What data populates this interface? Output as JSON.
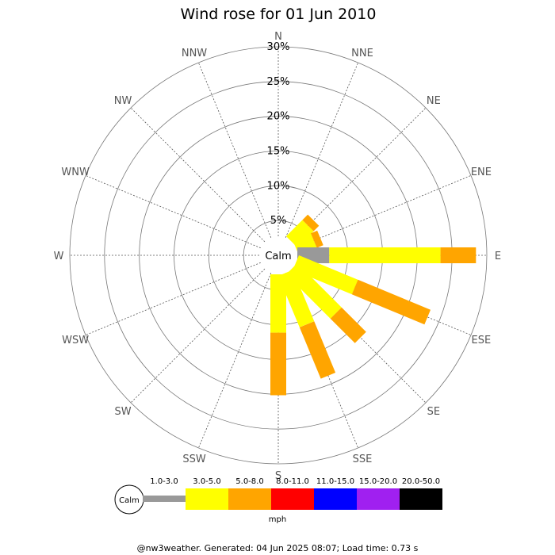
{
  "chart_data": {
    "type": "windrose",
    "title": "Wind rose for 01 Jun 2010",
    "directions": [
      "N",
      "NNE",
      "NE",
      "ENE",
      "E",
      "ESE",
      "SE",
      "SSE",
      "S",
      "SSW",
      "SW",
      "WSW",
      "W",
      "WNW",
      "NW",
      "NNW"
    ],
    "radial_ticks": [
      "5%",
      "10%",
      "15%",
      "20%",
      "25%",
      "30%"
    ],
    "radial_values": [
      5,
      10,
      15,
      20,
      25,
      30
    ],
    "rmax": 30,
    "calm_label": "Calm",
    "unit_label": "mph",
    "speed_bins": [
      {
        "label": "1.0-3.0",
        "color": "#999999"
      },
      {
        "label": "3.0-5.0",
        "color": "#ffff00"
      },
      {
        "label": "5.0-8.0",
        "color": "#ffa500"
      },
      {
        "label": "8.0-11.0",
        "color": "#ff0000"
      },
      {
        "label": "11.0-15.0",
        "color": "#0000ff"
      },
      {
        "label": "15.0-20.0",
        "color": "#a020f0"
      },
      {
        "label": "20.0-50.0",
        "color": "#000000"
      }
    ],
    "series": [
      {
        "direction": "NE",
        "segments": [
          0,
          3.3,
          1.1
        ]
      },
      {
        "direction": "ENE",
        "segments": [
          0,
          2.8,
          1.0
        ]
      },
      {
        "direction": "E",
        "segments": [
          4.6,
          16.0,
          5.1
        ]
      },
      {
        "direction": "ESE",
        "segments": [
          0,
          9.2,
          11.3
        ]
      },
      {
        "direction": "SE",
        "segments": [
          0,
          9.0,
          5.0
        ]
      },
      {
        "direction": "SSE",
        "segments": [
          0,
          8.0,
          8.0
        ]
      },
      {
        "direction": "S",
        "segments": [
          0,
          8.4,
          9.0
        ]
      }
    ]
  },
  "footer": "@nw3weather. Generated: 04 Jun 2025 08:07; Load time: 0.73 s"
}
